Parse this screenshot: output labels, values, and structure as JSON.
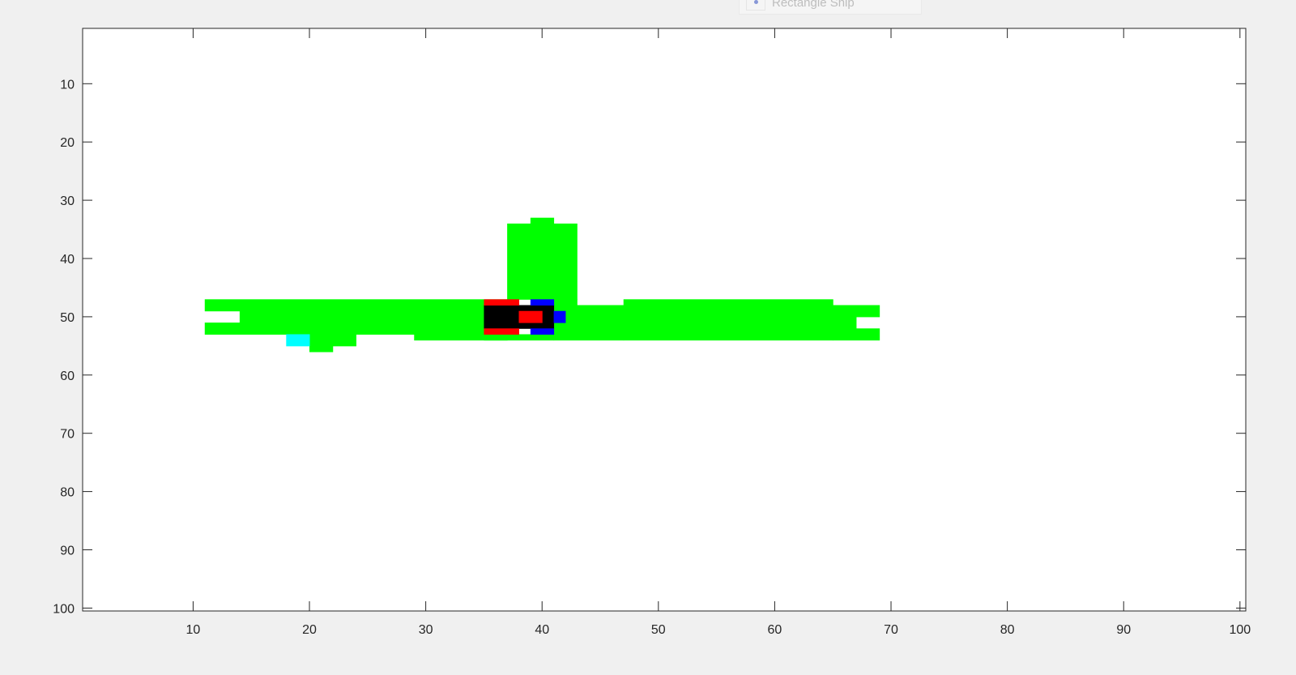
{
  "chart_data": {
    "type": "heatmap",
    "title": "",
    "xlabel": "",
    "ylabel": "",
    "xlim": [
      1,
      100
    ],
    "ylim": [
      1,
      100
    ],
    "y_reversed": true,
    "grid": false,
    "x_ticks": [
      10,
      20,
      30,
      40,
      50,
      60,
      70,
      80,
      90,
      100
    ],
    "y_ticks": [
      10,
      20,
      30,
      40,
      50,
      60,
      70,
      80,
      90,
      100
    ],
    "legend": {
      "placement": "top-center (mostly clipped off the top edge)",
      "entries": [
        {
          "label": "Rectangle Ship",
          "marker": "circle",
          "color": "#2040c0"
        }
      ]
    },
    "colors": {
      "green": "#00ff00",
      "black": "#000000",
      "red": "#ff0000",
      "blue": "#0000ff",
      "cyan": "#00ffff",
      "background": "#ffffff"
    },
    "cells": [
      {
        "name": "corridor-left-top",
        "color": "green",
        "x": [
          11,
          36
        ],
        "y": [
          47,
          48
        ]
      },
      {
        "name": "corridor-left-mid",
        "color": "green",
        "x": [
          14,
          36
        ],
        "y": [
          49,
          50
        ]
      },
      {
        "name": "corridor-left-bot",
        "color": "green",
        "x": [
          11,
          28
        ],
        "y": [
          51,
          52
        ]
      },
      {
        "name": "corridor-center",
        "color": "green",
        "x": [
          29,
          36
        ],
        "y": [
          51,
          53
        ]
      },
      {
        "name": "branch-up",
        "color": "green",
        "x": [
          37,
          42
        ],
        "y": [
          34,
          46
        ]
      },
      {
        "name": "branch-up-top",
        "color": "green",
        "x": [
          39,
          40
        ],
        "y": [
          33,
          33
        ]
      },
      {
        "name": "blob-right-of-ship",
        "color": "green",
        "x": [
          41,
          42
        ],
        "y": [
          47,
          48
        ]
      },
      {
        "name": "corridor-right-a",
        "color": "green",
        "x": [
          41,
          46
        ],
        "y": [
          48,
          53
        ]
      },
      {
        "name": "corridor-right-b",
        "color": "green",
        "x": [
          47,
          64
        ],
        "y": [
          47,
          53
        ]
      },
      {
        "name": "corridor-right-c",
        "color": "green",
        "x": [
          65,
          68
        ],
        "y": [
          48,
          49
        ]
      },
      {
        "name": "corridor-right-d",
        "color": "green",
        "x": [
          65,
          66
        ],
        "y": [
          50,
          51
        ]
      },
      {
        "name": "corridor-right-e",
        "color": "green",
        "x": [
          65,
          68
        ],
        "y": [
          52,
          53
        ]
      },
      {
        "name": "below-ship",
        "color": "green",
        "x": [
          35,
          40
        ],
        "y": [
          53,
          53
        ]
      },
      {
        "name": "bump-a",
        "color": "green",
        "x": [
          20,
          23
        ],
        "y": [
          53,
          54
        ]
      },
      {
        "name": "bump-b",
        "color": "green",
        "x": [
          20,
          21
        ],
        "y": [
          55,
          55
        ]
      },
      {
        "name": "cyan-target",
        "color": "cyan",
        "x": [
          18,
          19
        ],
        "y": [
          53,
          54
        ]
      },
      {
        "name": "ship-body",
        "color": "black",
        "x": [
          35,
          40
        ],
        "y": [
          48,
          51
        ]
      },
      {
        "name": "ship-red-top",
        "color": "red",
        "x": [
          35,
          37
        ],
        "y": [
          47,
          47
        ]
      },
      {
        "name": "ship-red-bottom",
        "color": "red",
        "x": [
          35,
          37
        ],
        "y": [
          52,
          52
        ]
      },
      {
        "name": "ship-red-center",
        "color": "red",
        "x": [
          38,
          39
        ],
        "y": [
          49,
          50
        ]
      },
      {
        "name": "ship-blue-top",
        "color": "blue",
        "x": [
          39,
          40
        ],
        "y": [
          47,
          47
        ]
      },
      {
        "name": "ship-blue-bottom",
        "color": "blue",
        "x": [
          39,
          40
        ],
        "y": [
          52,
          52
        ]
      },
      {
        "name": "ship-blue-nose",
        "color": "blue",
        "x": [
          41,
          41
        ],
        "y": [
          49,
          50
        ]
      }
    ]
  },
  "legend": {
    "label": "Rectangle Ship",
    "marker_color": "#2040c0"
  }
}
